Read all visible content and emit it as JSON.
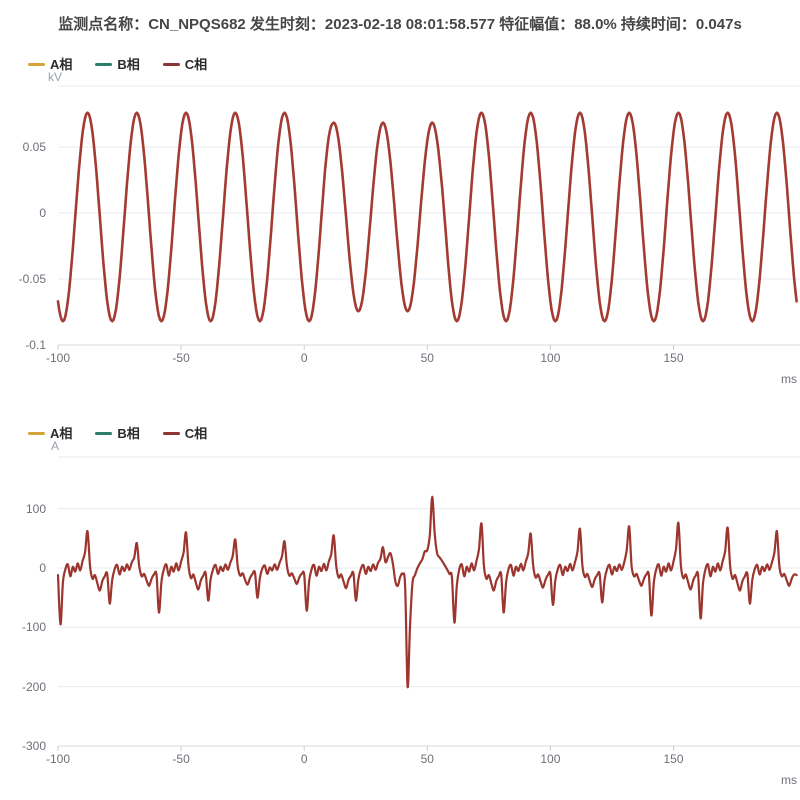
{
  "header": {
    "title": "监测点名称：CN_NPQS682 发生时刻：2023-02-18 08:01:58.577 特征幅值：88.0% 持续时间：0.047s"
  },
  "chart_data": [
    {
      "type": "line",
      "name": "voltage-waveform",
      "y_unit": "kV",
      "x_unit": "ms",
      "legend": [
        {
          "label": "A相",
          "color": "#d4a43a"
        },
        {
          "label": "B相",
          "color": "#2e7d6a"
        },
        {
          "label": "C相",
          "color": "#8e3432"
        }
      ],
      "visible_series": "C相",
      "line_color": "#a33b32",
      "x_range": [
        -100,
        200
      ],
      "x_ticks": [
        "-100",
        "-50",
        "0",
        "50",
        "100",
        "150"
      ],
      "x_tick_values": [
        -100,
        -50,
        0,
        50,
        100,
        150
      ],
      "y_ticks": [
        "0.05",
        "0",
        "-0.05",
        "-0.1"
      ],
      "y_tick_values": [
        0.05,
        0,
        -0.05,
        -0.1
      ],
      "ylim": [
        -0.1,
        0.098
      ],
      "grid": true,
      "legend_position": "top-left",
      "series": [
        {
          "name": "C相",
          "signal": "sine",
          "period_ms": 20,
          "amplitude_kV": 0.079,
          "offset_kV": -0.003,
          "crest_at_ms": -88,
          "sag": {
            "start_ms": 10,
            "end_ms": 57,
            "amplitude_kV": 0.0715,
            "magnitude_pct": 88.0,
            "duration_s": 0.047
          }
        }
      ]
    },
    {
      "type": "line",
      "name": "current-waveform",
      "y_unit": "A",
      "x_unit": "ms",
      "legend": [
        {
          "label": "A相",
          "color": "#d4a43a"
        },
        {
          "label": "B相",
          "color": "#2e7d6a"
        },
        {
          "label": "C相",
          "color": "#8e3432"
        }
      ],
      "visible_series": "C相",
      "line_color": "#9c352e",
      "x_range": [
        -100,
        200
      ],
      "x_ticks": [
        "-100",
        "-50",
        "0",
        "50",
        "100",
        "150"
      ],
      "x_tick_values": [
        -100,
        -50,
        0,
        50,
        100,
        150
      ],
      "y_ticks": [
        "100",
        "0",
        "-100",
        "-200",
        "-300"
      ],
      "y_tick_values": [
        100,
        0,
        -100,
        -200,
        -300
      ],
      "ylim": [
        -300,
        188
      ],
      "grid": true,
      "legend_position": "top-left",
      "series": [
        {
          "name": "C相",
          "t_start_ms": -100,
          "t_step_ms": 1,
          "values_A": [
            -12,
            -95,
            -25,
            -2,
            6,
            -14,
            2,
            -6,
            8,
            -4,
            12,
            27,
            62,
            4,
            -18,
            -12,
            -26,
            -38,
            -22,
            -14,
            -10,
            -60,
            -20,
            -2,
            5,
            -11,
            2,
            -5,
            6,
            -3,
            10,
            18,
            42,
            3,
            -14,
            -10,
            -21,
            -30,
            -18,
            -11,
            -11,
            -75,
            -24,
            -2,
            6,
            -13,
            2,
            -6,
            8,
            -4,
            11,
            26,
            60,
            4,
            -17,
            -11,
            -25,
            -36,
            -21,
            -13,
            -9,
            -55,
            -19,
            -2,
            5,
            -10,
            2,
            -5,
            6,
            -3,
            9,
            21,
            48,
            3,
            -13,
            -9,
            -20,
            -28,
            -17,
            -10,
            -8,
            -50,
            -17,
            -1,
            4,
            -10,
            1,
            -4,
            6,
            -3,
            9,
            20,
            45,
            3,
            -13,
            -9,
            -18,
            -27,
            -16,
            -10,
            -11,
            -72,
            -23,
            -2,
            5,
            -13,
            2,
            -5,
            7,
            -4,
            11,
            24,
            55,
            4,
            -16,
            -11,
            -23,
            -34,
            -20,
            -13,
            -9,
            -55,
            -19,
            -2,
            5,
            -10,
            2,
            -5,
            6,
            -3,
            9,
            16,
            35,
            10,
            18,
            25,
            8,
            -22,
            -30,
            -15,
            -10,
            -30,
            -200,
            -95,
            -25,
            -12,
            0,
            8,
            15,
            28,
            30,
            55,
            120,
            58,
            25,
            18,
            12,
            5,
            -2,
            -10,
            -15,
            -92,
            -30,
            -2,
            6,
            -14,
            2,
            -6,
            8,
            -4,
            12,
            32,
            75,
            4,
            -18,
            -12,
            -26,
            -38,
            -22,
            -14,
            -11,
            -75,
            -24,
            -2,
            5,
            -13,
            2,
            -5,
            7,
            -4,
            11,
            25,
            58,
            4,
            -16,
            -11,
            -23,
            -33,
            -20,
            -12,
            -10,
            -62,
            -21,
            -2,
            5,
            -12,
            2,
            -5,
            7,
            -4,
            10,
            28,
            66,
            4,
            -15,
            -10,
            -22,
            -32,
            -19,
            -12,
            -10,
            -58,
            -20,
            -2,
            5,
            -11,
            2,
            -5,
            6,
            -3,
            10,
            30,
            70,
            3,
            -14,
            -10,
            -21,
            -30,
            -18,
            -11,
            -12,
            -80,
            -25,
            -2,
            6,
            -13,
            2,
            -6,
            8,
            -4,
            11,
            32,
            76,
            4,
            -17,
            -11,
            -25,
            -36,
            -21,
            -13,
            -12,
            -85,
            -26,
            -2,
            6,
            -14,
            2,
            -6,
            8,
            -4,
            12,
            29,
            68,
            4,
            -18,
            -12,
            -26,
            -38,
            -22,
            -14,
            -10,
            -60,
            -20,
            -2,
            5,
            -11,
            2,
            -5,
            6,
            -3,
            10,
            26,
            62,
            3,
            -14,
            -10,
            -21,
            -30,
            -18,
            -11,
            -12
          ]
        }
      ]
    }
  ]
}
